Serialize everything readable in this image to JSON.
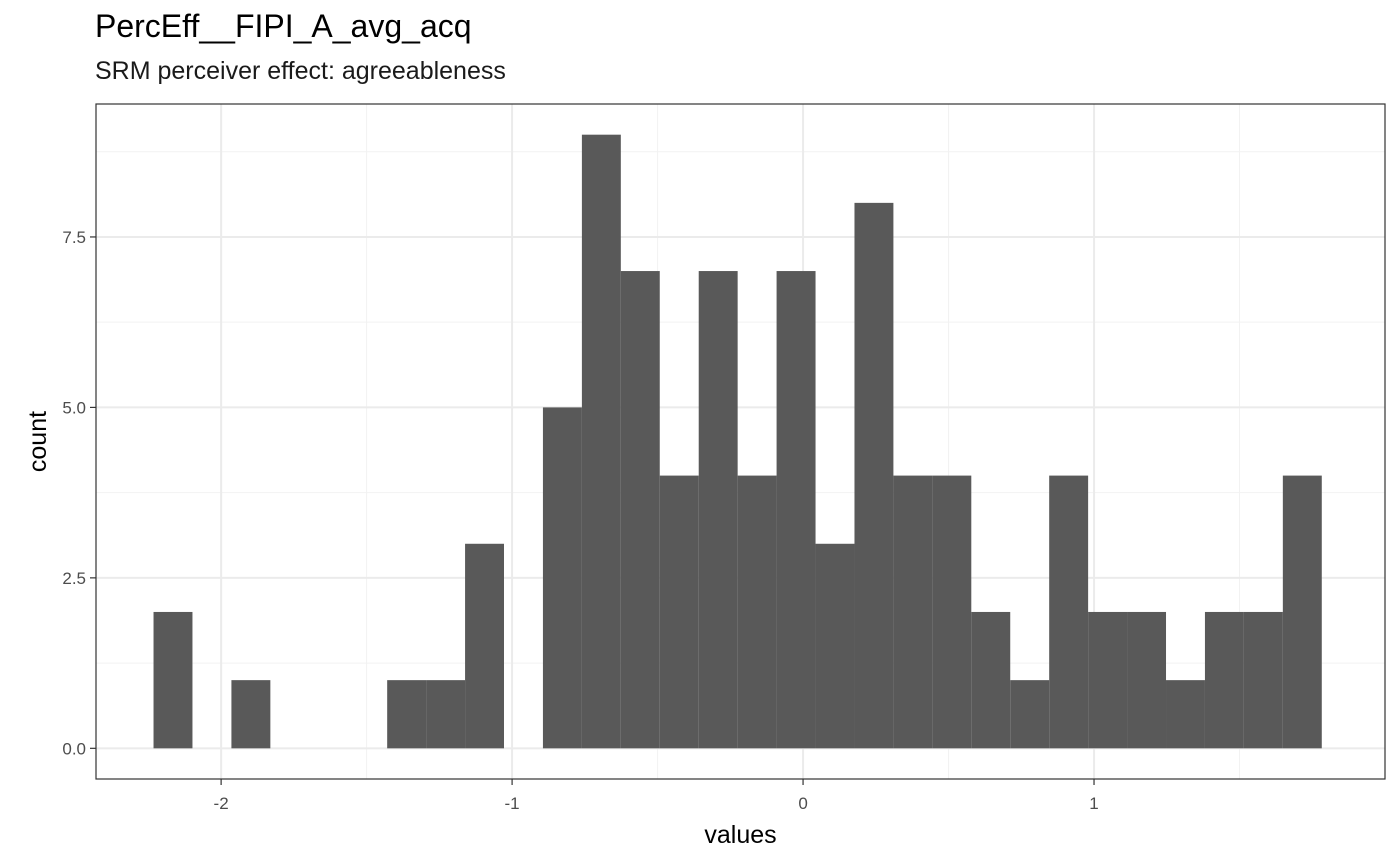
{
  "chart_data": {
    "type": "bar",
    "title": "PercEff__FIPI_A_avg_acq",
    "subtitle": "SRM perceiver effect: agreeableness",
    "xlabel": "values",
    "ylabel": "count",
    "xlim": [
      -2.43,
      2.0
    ],
    "ylim": [
      -0.45,
      9.45
    ],
    "x_ticks": [
      -2,
      -1,
      0,
      1
    ],
    "x_tick_labels": [
      "-2",
      "-1",
      "0",
      "1"
    ],
    "y_ticks": [
      0,
      2.5,
      5,
      7.5
    ],
    "y_tick_labels": [
      "0.0",
      "2.5",
      "5.0",
      "7.5"
    ],
    "grid": true,
    "bar_color": "#595959",
    "bins": [
      {
        "x0": -2.2323,
        "x1": -2.0985,
        "count": 2
      },
      {
        "x0": -2.0985,
        "x1": -1.9646,
        "count": 0
      },
      {
        "x0": -1.9646,
        "x1": -1.8308,
        "count": 1
      },
      {
        "x0": -1.8308,
        "x1": -1.697,
        "count": 0
      },
      {
        "x0": -1.697,
        "x1": -1.5631,
        "count": 0
      },
      {
        "x0": -1.5631,
        "x1": -1.4293,
        "count": 0
      },
      {
        "x0": -1.4293,
        "x1": -1.2955,
        "count": 1
      },
      {
        "x0": -1.2955,
        "x1": -1.1616,
        "count": 1
      },
      {
        "x0": -1.1616,
        "x1": -1.0278,
        "count": 3
      },
      {
        "x0": -1.0278,
        "x1": -0.894,
        "count": 0
      },
      {
        "x0": -0.894,
        "x1": -0.7601,
        "count": 5
      },
      {
        "x0": -0.7601,
        "x1": -0.6263,
        "count": 9
      },
      {
        "x0": -0.6263,
        "x1": -0.4925,
        "count": 7
      },
      {
        "x0": -0.4925,
        "x1": -0.3586,
        "count": 4
      },
      {
        "x0": -0.3586,
        "x1": -0.2248,
        "count": 7
      },
      {
        "x0": -0.2248,
        "x1": -0.091,
        "count": 4
      },
      {
        "x0": -0.091,
        "x1": 0.0429,
        "count": 7
      },
      {
        "x0": 0.0429,
        "x1": 0.1767,
        "count": 3
      },
      {
        "x0": 0.1767,
        "x1": 0.3105,
        "count": 8
      },
      {
        "x0": 0.3105,
        "x1": 0.4444,
        "count": 4
      },
      {
        "x0": 0.4444,
        "x1": 0.5782,
        "count": 4
      },
      {
        "x0": 0.5782,
        "x1": 0.712,
        "count": 2
      },
      {
        "x0": 0.712,
        "x1": 0.8459,
        "count": 1
      },
      {
        "x0": 0.8459,
        "x1": 0.9797,
        "count": 4
      },
      {
        "x0": 0.9797,
        "x1": 1.1135,
        "count": 2
      },
      {
        "x0": 1.1135,
        "x1": 1.2474,
        "count": 2
      },
      {
        "x0": 1.2474,
        "x1": 1.3812,
        "count": 1
      },
      {
        "x0": 1.3812,
        "x1": 1.515,
        "count": 2
      },
      {
        "x0": 1.515,
        "x1": 1.6489,
        "count": 2
      },
      {
        "x0": 1.6489,
        "x1": 1.7827,
        "count": 4
      }
    ]
  }
}
